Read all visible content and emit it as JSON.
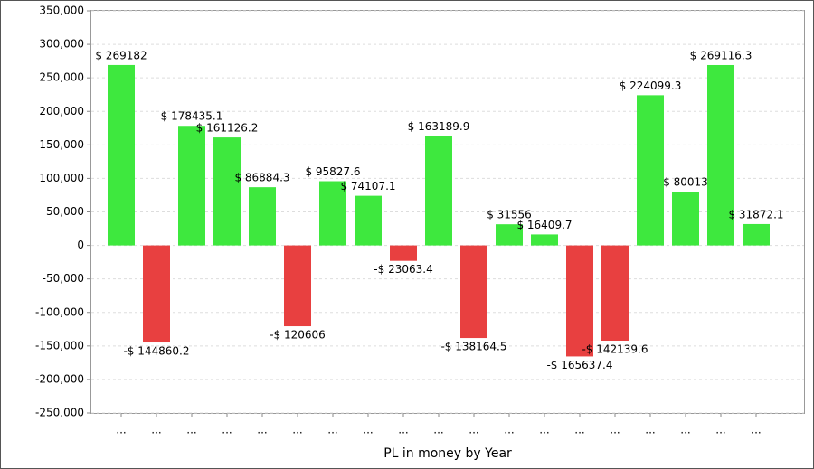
{
  "chart_data": {
    "type": "bar",
    "x_label": "PL in money by Year",
    "categories": [
      "...",
      "...",
      "...",
      "...",
      "...",
      "...",
      "...",
      "...",
      "...",
      "...",
      "...",
      "...",
      "...",
      "...",
      "...",
      "...",
      "...",
      "...",
      "..."
    ],
    "values": [
      269182,
      -144860.2,
      178435.1,
      161126.2,
      86884.3,
      -120606,
      95827.6,
      74107.1,
      -23063.4,
      163189.9,
      -138164.5,
      31556,
      16409.7,
      -165637.4,
      -142139.6,
      224099.3,
      80013,
      269116.3,
      31872.1
    ],
    "value_labels": [
      "$ 269182",
      "-$ 144860.2",
      "$ 178435.1",
      "$ 161126.2",
      "$ 86884.3",
      "-$ 120606",
      "$ 95827.6",
      "$ 74107.1",
      "-$ 23063.4",
      "$ 163189.9",
      "-$ 138164.5",
      "$ 31556",
      "$ 16409.7",
      "-$ 165637.4",
      "-$ 142139.6",
      "$ 224099.3",
      "$ 80013",
      "$ 269116.3",
      "$ 31872.1"
    ],
    "positive_color": "#3ee83e",
    "negative_color": "#e84040",
    "ylim": [
      -250000,
      350000
    ],
    "yticks": [
      {
        "value": -250000,
        "label": "-250,000"
      },
      {
        "value": -200000,
        "label": "-200,000"
      },
      {
        "value": -150000,
        "label": "-150,000"
      },
      {
        "value": -100000,
        "label": "-100,000"
      },
      {
        "value": -50000,
        "label": "-50,000"
      },
      0,
      {
        "value": 50000,
        "label": "50,000"
      },
      {
        "value": 100000,
        "label": "100,000"
      },
      {
        "value": 150000,
        "label": "150,000"
      },
      {
        "value": 200000,
        "label": "200,000"
      },
      {
        "value": 250000,
        "label": "250,000"
      },
      {
        "value": 300000,
        "label": "300,000"
      },
      {
        "value": 350000,
        "label": "350,000"
      }
    ],
    "grid": true
  }
}
